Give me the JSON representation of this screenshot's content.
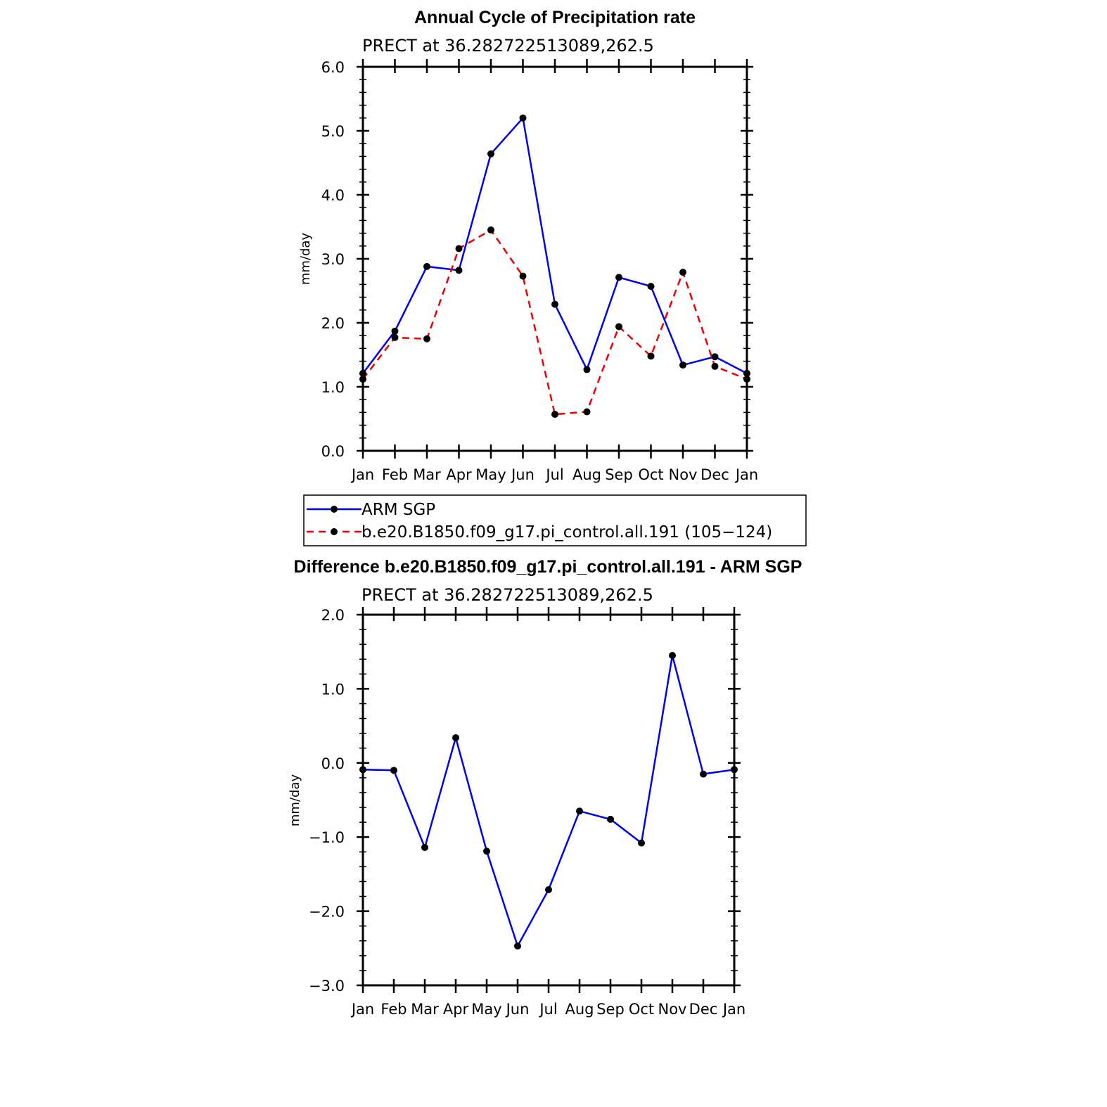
{
  "chart_data": [
    {
      "type": "line",
      "title": "Annual Cycle of Precipitation rate",
      "subtitle": "PRECT at 36.282722513089,262.5",
      "xlabel": "",
      "ylabel": "mm/day",
      "ylim": [
        0.0,
        6.0
      ],
      "yticks": [
        "0.0",
        "1.0",
        "2.0",
        "3.0",
        "4.0",
        "5.0",
        "6.0"
      ],
      "categories": [
        "Jan",
        "Feb",
        "Mar",
        "Apr",
        "May",
        "Jun",
        "Jul",
        "Aug",
        "Sep",
        "Oct",
        "Nov",
        "Dec",
        "Jan"
      ],
      "series": [
        {
          "name": "ARM SGP",
          "color": "#0000ee",
          "dash": "solid",
          "values": [
            1.21,
            1.87,
            2.88,
            2.82,
            4.64,
            5.2,
            2.29,
            1.27,
            2.71,
            2.57,
            1.34,
            1.47,
            1.21
          ]
        },
        {
          "name": "b.e20.B1850.f09_g17.pi_control.all.191 (105−124)",
          "color": "#ee0000",
          "dash": "dashed",
          "values": [
            1.12,
            1.77,
            1.75,
            3.16,
            3.45,
            2.73,
            0.57,
            0.61,
            1.94,
            1.48,
            2.79,
            1.32,
            1.12
          ]
        }
      ],
      "legend": "below"
    },
    {
      "type": "line",
      "title": "Difference b.e20.B1850.f09_g17.pi_control.all.191 - ARM SGP",
      "subtitle": "PRECT at 36.282722513089,262.5",
      "xlabel": "",
      "ylabel": "mm/day",
      "ylim": [
        -3.0,
        2.0
      ],
      "yticks": [
        "−3.0",
        "−2.0",
        "−1.0",
        "0.0",
        "1.0",
        "2.0"
      ],
      "categories": [
        "Jan",
        "Feb",
        "Mar",
        "Apr",
        "May",
        "Jun",
        "Jul",
        "Aug",
        "Sep",
        "Oct",
        "Nov",
        "Dec",
        "Jan"
      ],
      "series": [
        {
          "color": "#0000ee",
          "dash": "solid",
          "values": [
            -0.09,
            -0.1,
            -1.14,
            0.34,
            -1.19,
            -2.47,
            -1.71,
            -0.65,
            -0.76,
            -1.08,
            1.45,
            -0.15,
            -0.09
          ]
        }
      ]
    }
  ]
}
